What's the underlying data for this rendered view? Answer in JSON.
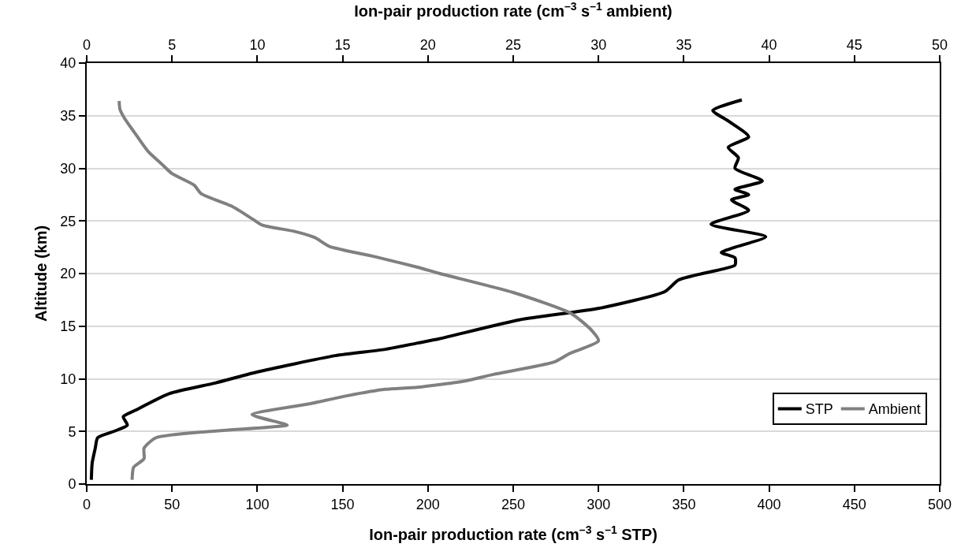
{
  "chart_data": {
    "type": "line",
    "xlabel": "Ion-pair production rate (cm$^{–3}$ s$^{–1}$ STP)",
    "x2label": "Ion-pair production rate (cm$^{–3}$ s$^{–1}$ ambient)",
    "ylabel": "Altitude (km)",
    "xlim": [
      0,
      500
    ],
    "xticks": [
      0,
      50,
      100,
      150,
      200,
      250,
      300,
      350,
      400,
      450,
      500
    ],
    "x2lim": [
      0,
      50
    ],
    "x2ticks": [
      0,
      5,
      10,
      15,
      20,
      25,
      30,
      35,
      40,
      45,
      50
    ],
    "ylim": [
      0,
      40
    ],
    "yticks": [
      0,
      5,
      10,
      15,
      20,
      25,
      30,
      35,
      40
    ],
    "grid": "y",
    "legend": "bottom right",
    "line_style": "solid",
    "series": [
      {
        "name": "STP",
        "color": "#000000",
        "x": [
          2.7,
          3.2,
          5.0,
          6.4,
          15.8,
          23.8,
          21.4,
          28.4,
          48.6,
          75.3,
          98.8,
          145.7,
          175,
          194,
          206.6,
          253.5,
          300.4,
          339,
          347,
          372,
          380,
          380,
          372,
          380,
          398,
          366,
          388,
          378,
          388,
          380,
          396,
          380,
          382,
          376,
          388,
          376,
          367,
          384
        ],
        "values": [
          0.4,
          2.0,
          3.4,
          4.4,
          5.0,
          5.6,
          6.4,
          7.0,
          8.6,
          9.6,
          10.6,
          12.2,
          12.8,
          13.4,
          13.8,
          15.6,
          16.7,
          18.3,
          19.4,
          20.4,
          20.8,
          21.5,
          22.0,
          22.5,
          23.5,
          24.7,
          26.0,
          27.0,
          27.5,
          28.0,
          28.8,
          30.0,
          31.0,
          32.0,
          33.0,
          34.5,
          35.5,
          36.5
        ]
      },
      {
        "name": "Ambient",
        "color": "#808080",
        "axis": "x2",
        "x": [
          2.66,
          2.75,
          3.36,
          3.36,
          4.06,
          10.6,
          11.75,
          9.69,
          12.97,
          15.3,
          17.5,
          19.4,
          22.2,
          23.8,
          27.4,
          28.3,
          30.0,
          29.6,
          28.4,
          25.0,
          20.7,
          19.4,
          16.9,
          14.2,
          13.4,
          12.2,
          10.3,
          9.7,
          8.5,
          6.7,
          6.3,
          5.0,
          4.4,
          3.6,
          2.8,
          2.2,
          1.95,
          1.9
        ],
        "values": [
          0.4,
          1.6,
          2.4,
          3.4,
          4.4,
          5.4,
          5.6,
          6.6,
          7.6,
          8.4,
          9.0,
          9.2,
          9.8,
          10.4,
          11.6,
          12.4,
          13.6,
          14.6,
          16.2,
          18.2,
          20.0,
          20.6,
          21.6,
          22.6,
          23.4,
          24.0,
          24.6,
          25.2,
          26.4,
          27.6,
          28.4,
          29.5,
          30.4,
          31.6,
          33.4,
          34.8,
          35.6,
          36.4
        ]
      }
    ]
  }
}
